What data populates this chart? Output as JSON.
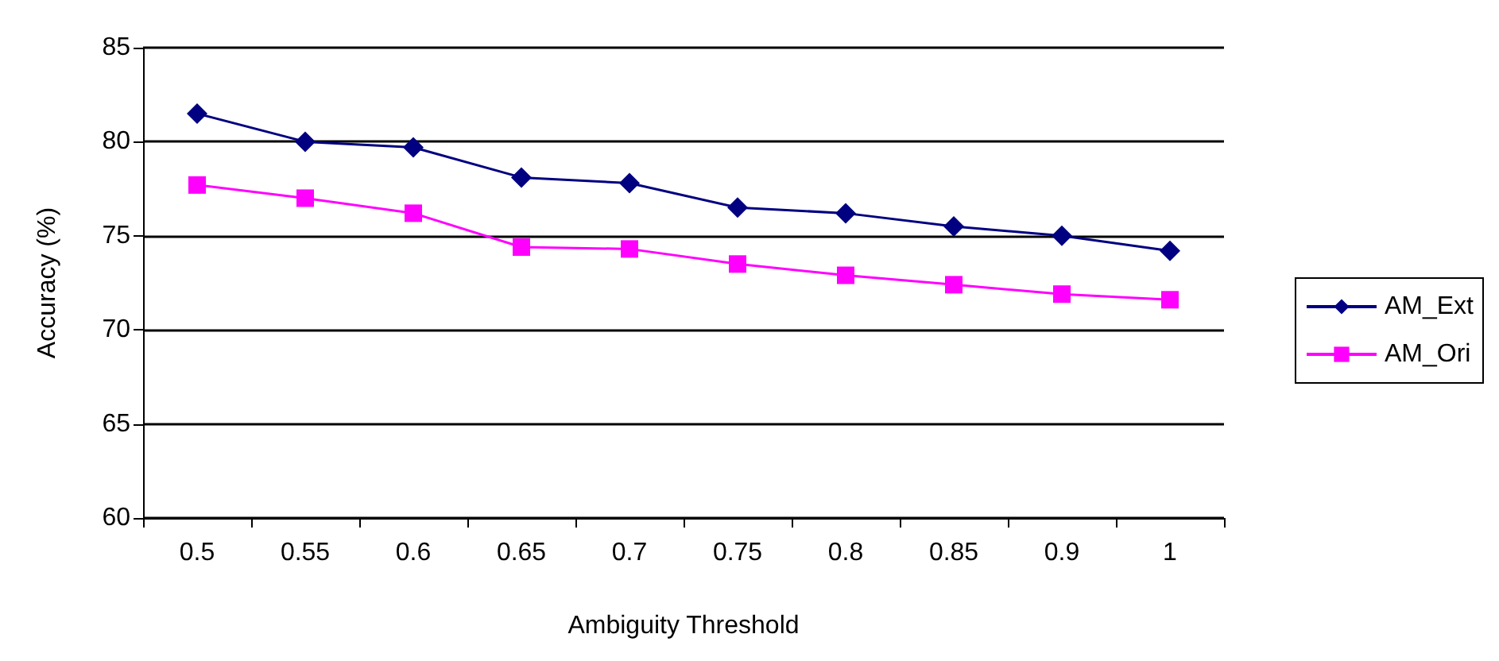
{
  "chart_data": {
    "type": "line",
    "xlabel": "Ambiguity Threshold",
    "ylabel": "Accuracy (%)",
    "categories": [
      "0.5",
      "0.55",
      "0.6",
      "0.65",
      "0.7",
      "0.75",
      "0.8",
      "0.85",
      "0.9",
      "1"
    ],
    "series": [
      {
        "name": "AM_Ext",
        "color": "#000080",
        "marker": "diamond",
        "values": [
          81.5,
          80.0,
          79.7,
          78.1,
          77.8,
          76.5,
          76.2,
          75.5,
          75.0,
          74.2
        ]
      },
      {
        "name": "AM_Ori",
        "color": "#ff00ff",
        "marker": "square",
        "values": [
          77.7,
          77.0,
          76.2,
          74.4,
          74.3,
          73.5,
          72.9,
          72.4,
          71.9,
          71.6
        ]
      }
    ],
    "ylim": [
      60,
      85
    ],
    "yticks": [
      60,
      65,
      70,
      75,
      80,
      85
    ],
    "grid": "y",
    "legend": "right"
  }
}
